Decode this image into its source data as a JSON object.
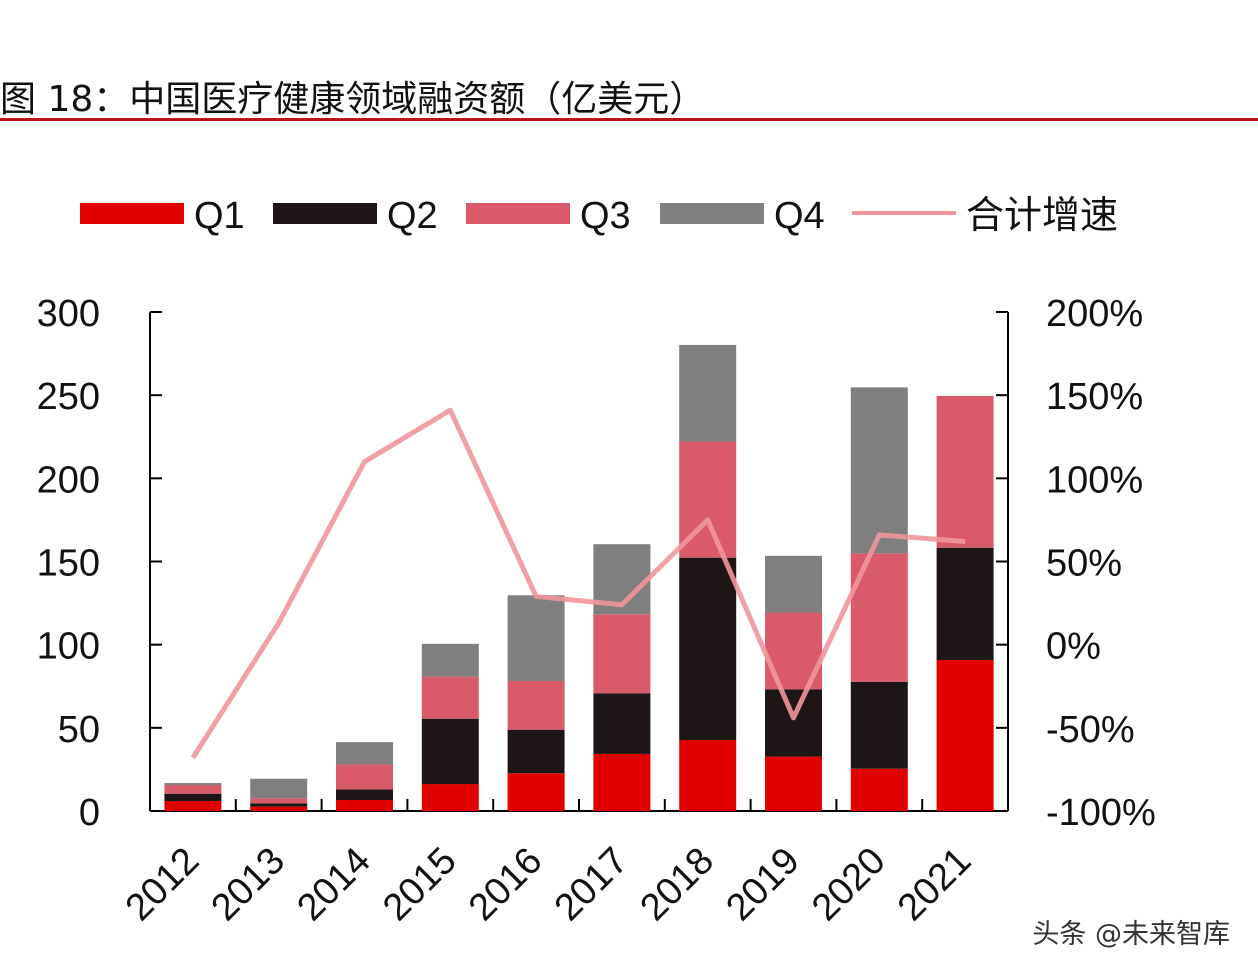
{
  "title": "图 18：中国医疗健康领域融资额（亿美元）",
  "watermark": "头条 @未来智库",
  "chart_data": {
    "type": "bar",
    "stacked": true,
    "categories": [
      "2012",
      "2013",
      "2014",
      "2015",
      "2016",
      "2017",
      "2018",
      "2019",
      "2020",
      "2021"
    ],
    "series": [
      {
        "name": "Q1",
        "type": "bar",
        "axis": "left",
        "color": "#e00000",
        "values": [
          6,
          2.6,
          6.6,
          16.2,
          22.7,
          34.3,
          42.7,
          32.7,
          25.4,
          90.8
        ]
      },
      {
        "name": "Q2",
        "type": "bar",
        "axis": "left",
        "color": "#1e1616",
        "values": [
          4.4,
          2,
          6.4,
          39.3,
          26.2,
          36.5,
          109.6,
          40.5,
          52.3,
          67.5
        ]
      },
      {
        "name": "Q3",
        "type": "bar",
        "axis": "left",
        "color": "#d95b6b",
        "values": [
          5.2,
          3,
          15,
          25.3,
          29.3,
          47.5,
          69.8,
          46.1,
          77.2,
          91.2
        ]
      },
      {
        "name": "Q4",
        "type": "bar",
        "axis": "left",
        "color": "#7f7f7f",
        "values": [
          1.2,
          11.8,
          13.4,
          19.7,
          51.5,
          42.1,
          58.1,
          34.1,
          99.8,
          0
        ]
      },
      {
        "name": "合计增速",
        "type": "line",
        "axis": "right",
        "color": "#f0969c",
        "values": [
          -68,
          13,
          110,
          141,
          29,
          24,
          75,
          -44,
          66,
          62
        ]
      }
    ],
    "ylim": [
      0,
      300
    ],
    "yticks": [
      "0",
      "50",
      "100",
      "150",
      "200",
      "250",
      "300"
    ],
    "y2lim": [
      -100,
      200
    ],
    "y2ticks": [
      "-100%",
      "-50%",
      "0%",
      "50%",
      "100%",
      "150%",
      "200%"
    ],
    "legend": "top",
    "grid": false
  }
}
